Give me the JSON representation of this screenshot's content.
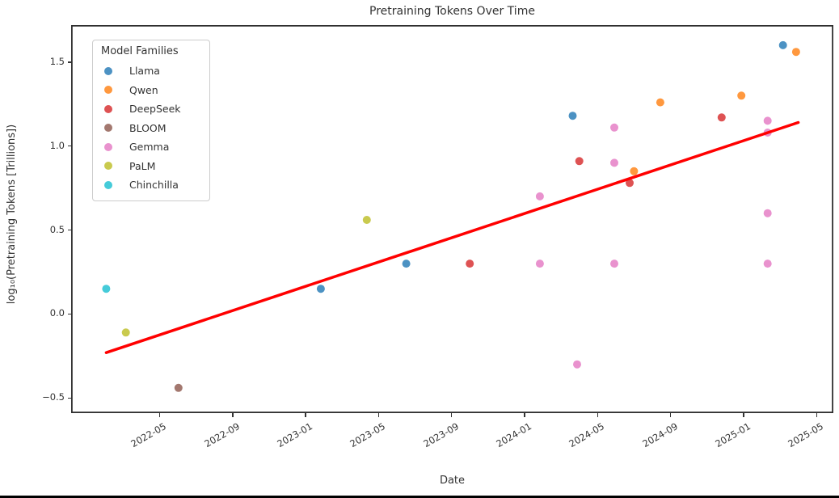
{
  "chart_data": {
    "type": "scatter",
    "title": "Pretraining Tokens Over Time",
    "xlabel": "Date",
    "ylabel": "log₁₀(Pretraining Tokens [Trillions])",
    "legend_title": "Model Families",
    "legend_position": "upper left",
    "grid": false,
    "frame_color": "#2e2e2e",
    "point_radius": 5,
    "x_axis": {
      "min": 2021.93,
      "max": 2025.41,
      "ticks": [
        {
          "label": "2022-05",
          "value": 2022.333
        },
        {
          "label": "2022-09",
          "value": 2022.667
        },
        {
          "label": "2023-01",
          "value": 2023.0
        },
        {
          "label": "2023-05",
          "value": 2023.333
        },
        {
          "label": "2023-09",
          "value": 2023.667
        },
        {
          "label": "2024-01",
          "value": 2024.0
        },
        {
          "label": "2024-05",
          "value": 2024.333
        },
        {
          "label": "2024-09",
          "value": 2024.667
        },
        {
          "label": "2025-01",
          "value": 2025.0
        },
        {
          "label": "2025-05",
          "value": 2025.333
        }
      ]
    },
    "y_axis": {
      "min": -0.59,
      "max": 1.72,
      "ticks": [
        {
          "label": "1.5",
          "value": 1.5
        },
        {
          "label": "1.0",
          "value": 1.0
        },
        {
          "label": "0.5",
          "value": 0.5
        },
        {
          "label": "0.0",
          "value": 0.0
        },
        {
          "label": "−0.5",
          "value": -0.5
        }
      ]
    },
    "series": [
      {
        "name": "Llama",
        "color": "#4c92c3",
        "points": [
          {
            "date": "2023-01",
            "x": 2023.07,
            "y": 0.15
          },
          {
            "date": "2023-06",
            "x": 2023.46,
            "y": 0.3
          },
          {
            "date": "2024-03",
            "x": 2024.22,
            "y": 1.18
          },
          {
            "date": "2025-03",
            "x": 2025.18,
            "y": 1.6
          }
        ]
      },
      {
        "name": "Qwen",
        "color": "#ff983e",
        "points": [
          {
            "date": "2024-06",
            "x": 2024.5,
            "y": 0.85
          },
          {
            "date": "2024-08",
            "x": 2024.62,
            "y": 1.26
          },
          {
            "date": "2025-01",
            "x": 2024.99,
            "y": 1.3
          },
          {
            "date": "2025-03",
            "x": 2025.24,
            "y": 1.56
          }
        ]
      },
      {
        "name": "DeepSeek",
        "color": "#de5253",
        "points": [
          {
            "date": "2023-10",
            "x": 2023.75,
            "y": 0.3
          },
          {
            "date": "2024-03",
            "x": 2024.25,
            "y": 0.91
          },
          {
            "date": "2024-06",
            "x": 2024.48,
            "y": 0.78
          },
          {
            "date": "2024-12",
            "x": 2024.9,
            "y": 1.17
          }
        ]
      },
      {
        "name": "BLOOM",
        "color": "#a3786f",
        "points": [
          {
            "date": "2022-06",
            "x": 2022.42,
            "y": -0.44
          }
        ]
      },
      {
        "name": "Gemma",
        "color": "#e992ce",
        "points": [
          {
            "date": "2024-01",
            "x": 2024.07,
            "y": 0.3
          },
          {
            "date": "2024-01",
            "x": 2024.07,
            "y": 0.7
          },
          {
            "date": "2024-03",
            "x": 2024.24,
            "y": -0.3
          },
          {
            "date": "2024-05",
            "x": 2024.41,
            "y": 0.3
          },
          {
            "date": "2024-05",
            "x": 2024.41,
            "y": 0.9
          },
          {
            "date": "2024-05",
            "x": 2024.41,
            "y": 1.11
          },
          {
            "date": "2025-02",
            "x": 2025.11,
            "y": 0.3
          },
          {
            "date": "2025-02",
            "x": 2025.11,
            "y": 0.6
          },
          {
            "date": "2025-02",
            "x": 2025.11,
            "y": 1.08
          },
          {
            "date": "2025-02",
            "x": 2025.11,
            "y": 1.15
          }
        ]
      },
      {
        "name": "PaLM",
        "color": "#c9ca4e",
        "points": [
          {
            "date": "2022-03",
            "x": 2022.18,
            "y": -0.11
          },
          {
            "date": "2023-04",
            "x": 2023.28,
            "y": 0.56
          }
        ]
      },
      {
        "name": "Chinchilla",
        "color": "#45cbd9",
        "points": [
          {
            "date": "2022-02",
            "x": 2022.09,
            "y": 0.15
          }
        ]
      }
    ],
    "trend_line": {
      "color": "#ff0000",
      "width": 3.5,
      "x1": 2022.09,
      "y1": -0.23,
      "x2": 2025.25,
      "y2": 1.14
    }
  }
}
